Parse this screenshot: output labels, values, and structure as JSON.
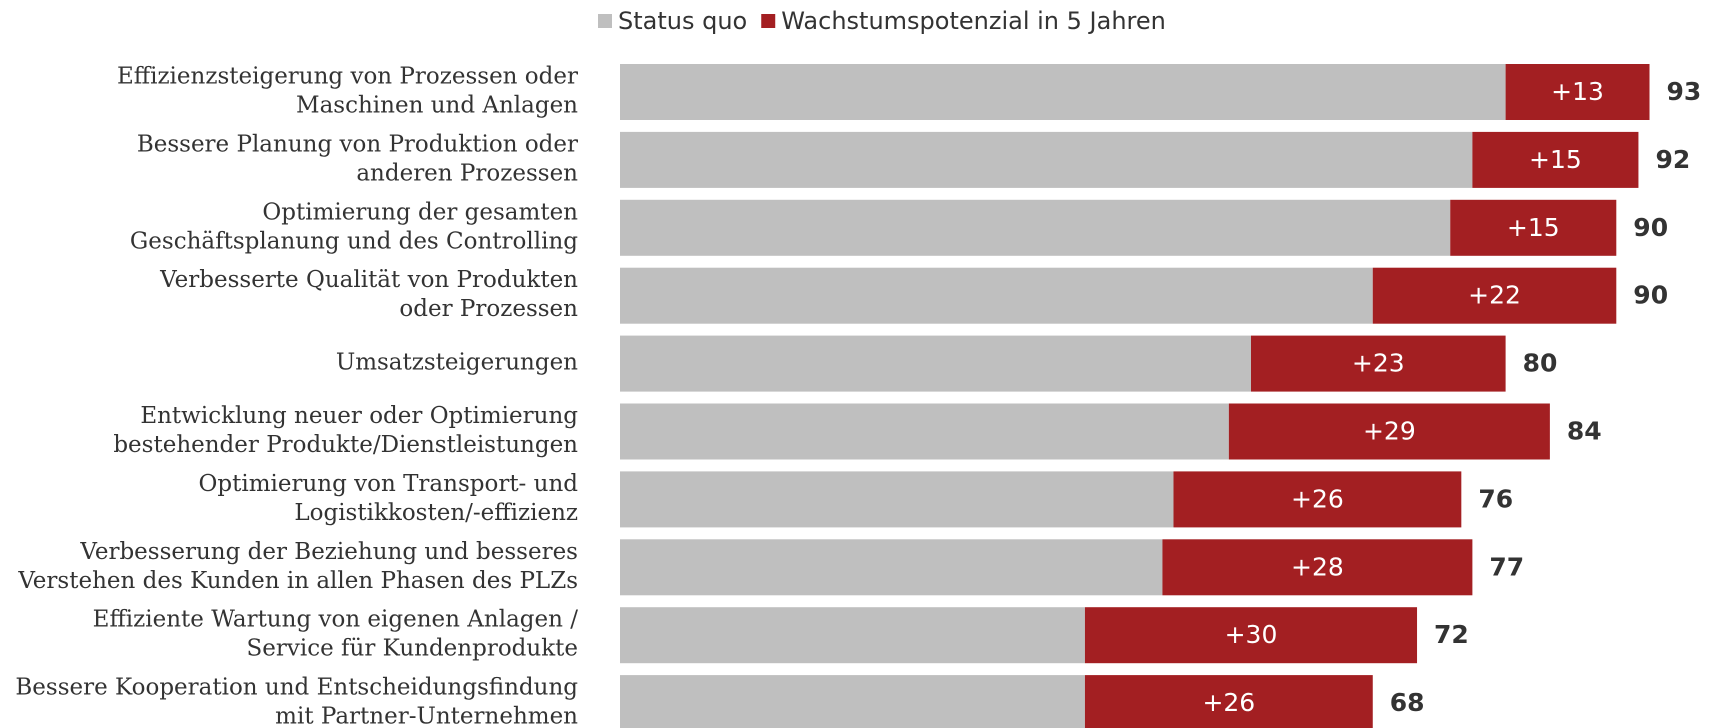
{
  "chart_data": {
    "type": "stacked-barh",
    "categories": [
      [
        "Effizienzsteigerung von Prozessen oder",
        "Maschinen und Anlagen"
      ],
      [
        "Bessere Planung von Produktion oder",
        "anderen Prozessen"
      ],
      [
        "Optimierung der gesamten",
        "Geschäftsplanung und des Controlling"
      ],
      [
        "Verbesserte Qualität von Produkten",
        "oder Prozessen"
      ],
      [
        "Umsatzsteigerungen"
      ],
      [
        "Entwicklung neuer oder Optimierung",
        "bestehender Produkte/Dienstleistungen"
      ],
      [
        "Optimierung von Transport- und",
        "Logistikkosten/-effizienz"
      ],
      [
        "Verbesserung der Beziehung und besseres",
        "Verstehen des Kunden in allen Phasen des PLZs"
      ],
      [
        "Effiziente Wartung von eigenen Anlagen /",
        "Service für Kundenprodukte"
      ],
      [
        "Bessere Kooperation und Entscheidungsfindung",
        "mit Partner-Unternehmen"
      ]
    ],
    "series": [
      {
        "name": "Status quo",
        "color": "#bfbfbf",
        "values": [
          80,
          77,
          75,
          68,
          57,
          55,
          50,
          49,
          42,
          42
        ]
      },
      {
        "name": "Wachstumspotenzial in 5 Jahren",
        "color": "#a31f22",
        "values": [
          13,
          15,
          15,
          22,
          23,
          29,
          26,
          28,
          30,
          26
        ],
        "value_labels": [
          "+13",
          "+15",
          "+15",
          "+22",
          "+23",
          "+29",
          "+26",
          "+28",
          "+30",
          "+26"
        ]
      }
    ],
    "totals": [
      93,
      92,
      90,
      90,
      80,
      84,
      76,
      77,
      72,
      68
    ],
    "xlim": [
      0,
      100
    ],
    "legend": "top"
  }
}
